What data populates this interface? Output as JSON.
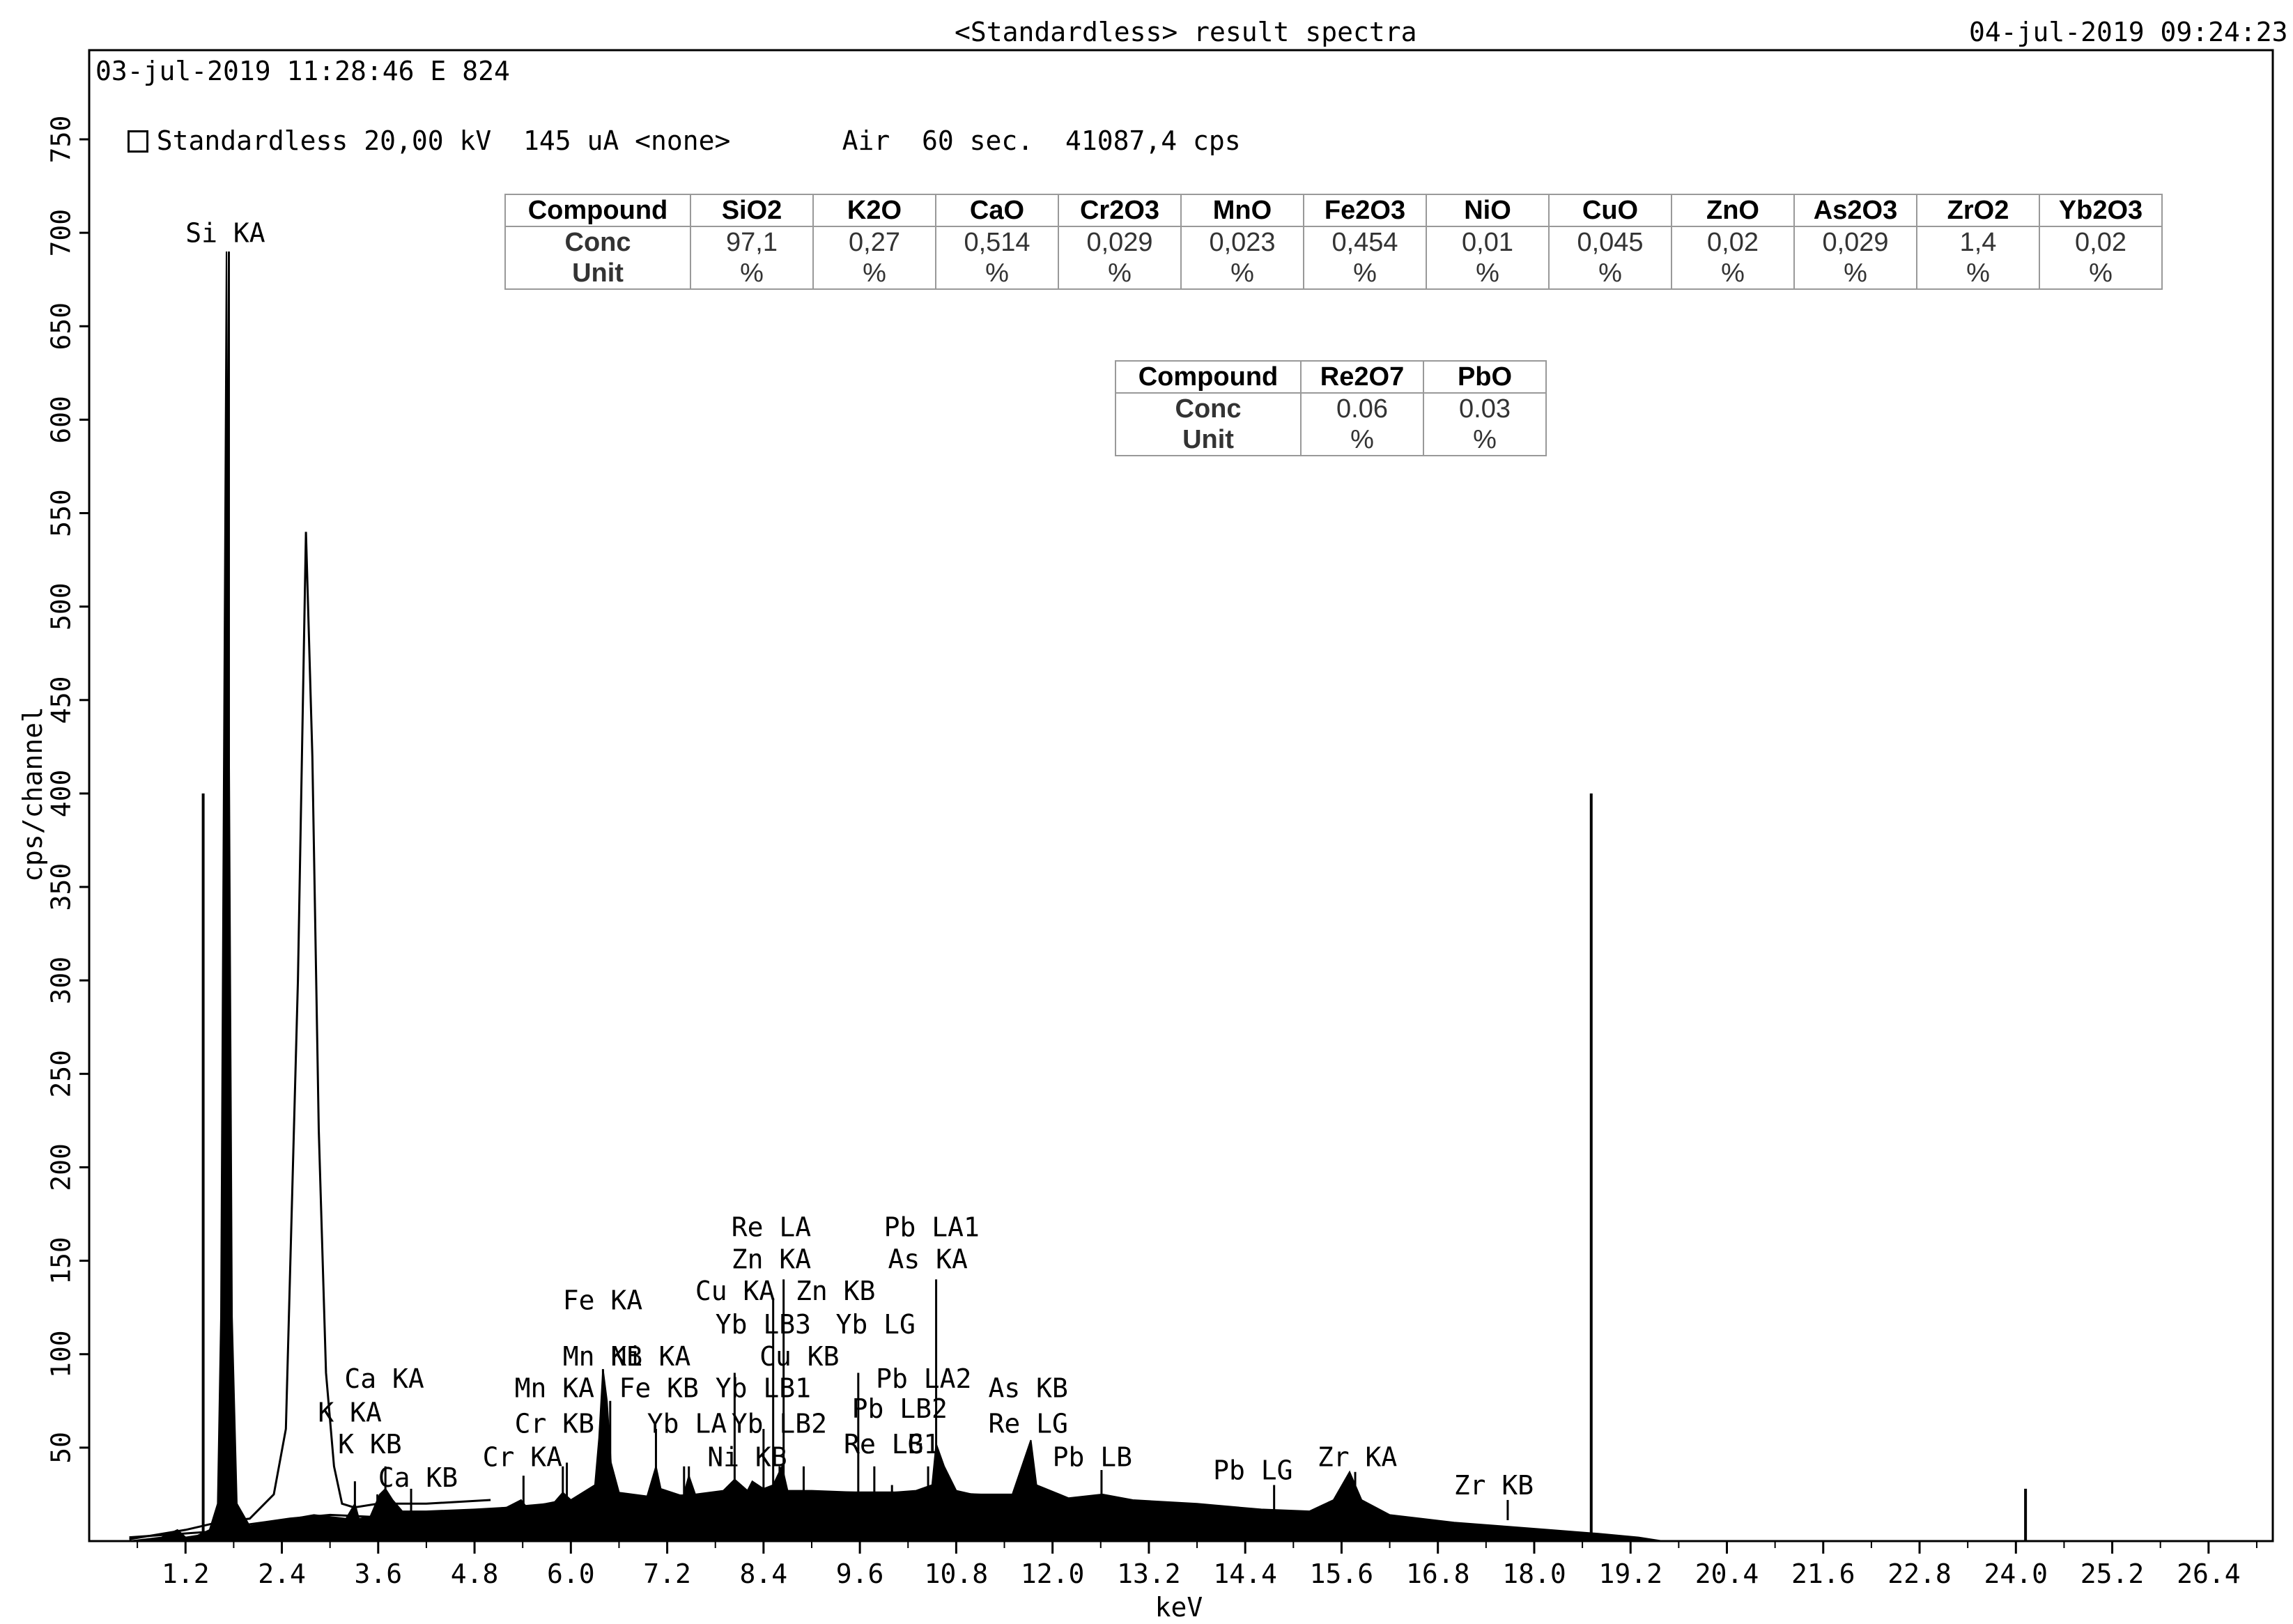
{
  "header": {
    "title": "<Standardless> result spectra",
    "datetime": "04-jul-2019 09:24:23",
    "sample_line": "03-jul-2019 11:28:46 E 824",
    "conditions": {
      "mode": "Standardless",
      "voltage": "20,00 kV",
      "current": "145 uA",
      "filter": "<none>",
      "atmosphere": "Air",
      "time": "60 sec.",
      "rate": "41087,4 cps"
    }
  },
  "table1": {
    "row_labels": [
      "Compound",
      "Conc",
      "Unit"
    ],
    "compounds": [
      "SiO2",
      "K2O",
      "CaO",
      "Cr2O3",
      "MnO",
      "Fe2O3",
      "NiO",
      "CuO",
      "ZnO",
      "As2O3",
      "ZrO2",
      "Yb2O3"
    ],
    "conc": [
      "97,1",
      "0,27",
      "0,514",
      "0,029",
      "0,023",
      "0,454",
      "0,01",
      "0,045",
      "0,02",
      "0,029",
      "1,4",
      "0,02"
    ],
    "unit": [
      "%",
      "%",
      "%",
      "%",
      "%",
      "%",
      "%",
      "%",
      "%",
      "%",
      "%",
      "%"
    ]
  },
  "table2": {
    "row_labels": [
      "Compound",
      "Conc",
      "Unit"
    ],
    "compounds": [
      "Re2O7",
      "PbO"
    ],
    "conc": [
      "0.06",
      "0.03"
    ],
    "unit": [
      "%",
      "%"
    ]
  },
  "chart_data": {
    "type": "line",
    "xlabel": "keV",
    "ylabel": "cps/channel",
    "xlim": [
      0,
      27.2
    ],
    "ylim": [
      0,
      750
    ],
    "xticks": [
      "1.2",
      "2.4",
      "3.6",
      "4.8",
      "6.0",
      "7.2",
      "8.4",
      "9.6",
      "10.8",
      "12.0",
      "13.2",
      "14.4",
      "15.6",
      "16.8",
      "18.0",
      "19.2",
      "20.4",
      "21.6",
      "22.8",
      "24.0",
      "25.2",
      "26.4"
    ],
    "yticks": [
      "50",
      "100",
      "150",
      "200",
      "250",
      "300",
      "350",
      "400",
      "450",
      "500",
      "550",
      "600",
      "650",
      "700",
      "750"
    ],
    "spectrum_filled": [
      [
        0.5,
        0
      ],
      [
        0.9,
        2
      ],
      [
        1.1,
        6
      ],
      [
        1.2,
        2
      ],
      [
        1.35,
        3
      ],
      [
        1.5,
        6
      ],
      [
        1.6,
        20
      ],
      [
        1.64,
        120
      ],
      [
        1.68,
        450
      ],
      [
        1.71,
        690
      ],
      [
        1.74,
        450
      ],
      [
        1.78,
        120
      ],
      [
        1.84,
        20
      ],
      [
        2.0,
        8
      ],
      [
        2.4,
        11
      ],
      [
        2.8,
        14
      ],
      [
        3.0,
        13
      ],
      [
        3.2,
        12
      ],
      [
        3.31,
        20
      ],
      [
        3.36,
        12
      ],
      [
        3.5,
        13
      ],
      [
        3.62,
        25
      ],
      [
        3.69,
        28
      ],
      [
        3.78,
        22
      ],
      [
        3.9,
        16
      ],
      [
        4.2,
        16
      ],
      [
        4.8,
        17
      ],
      [
        5.2,
        18
      ],
      [
        5.38,
        22
      ],
      [
        5.45,
        18
      ],
      [
        5.8,
        21
      ],
      [
        5.9,
        26
      ],
      [
        6.0,
        22
      ],
      [
        6.3,
        30
      ],
      [
        6.35,
        55
      ],
      [
        6.4,
        92
      ],
      [
        6.45,
        75
      ],
      [
        6.5,
        42
      ],
      [
        6.6,
        26
      ],
      [
        6.95,
        24
      ],
      [
        7.06,
        40
      ],
      [
        7.12,
        28
      ],
      [
        7.4,
        24
      ],
      [
        7.47,
        35
      ],
      [
        7.55,
        25
      ],
      [
        7.9,
        27
      ],
      [
        8.04,
        33
      ],
      [
        8.2,
        27
      ],
      [
        8.26,
        32
      ],
      [
        8.4,
        28
      ],
      [
        8.52,
        30
      ],
      [
        8.63,
        40
      ],
      [
        8.7,
        27
      ],
      [
        9.0,
        27
      ],
      [
        9.6,
        26
      ],
      [
        10.0,
        26
      ],
      [
        10.3,
        27
      ],
      [
        10.5,
        30
      ],
      [
        10.55,
        52
      ],
      [
        10.65,
        40
      ],
      [
        10.8,
        27
      ],
      [
        11.0,
        25
      ],
      [
        11.5,
        25
      ],
      [
        11.73,
        54
      ],
      [
        11.8,
        30
      ],
      [
        12.2,
        23
      ],
      [
        12.62,
        25
      ],
      [
        13.0,
        22
      ],
      [
        13.8,
        20
      ],
      [
        14.6,
        17
      ],
      [
        15.2,
        16
      ],
      [
        15.5,
        22
      ],
      [
        15.7,
        37
      ],
      [
        15.85,
        22
      ],
      [
        16.2,
        14
      ],
      [
        17.0,
        10
      ],
      [
        17.6,
        8
      ],
      [
        18.2,
        6
      ],
      [
        18.8,
        4
      ],
      [
        19.3,
        2
      ],
      [
        19.6,
        0
      ]
    ],
    "spectrum_outline": [
      [
        0.5,
        1
      ],
      [
        1.2,
        6
      ],
      [
        1.6,
        10
      ],
      [
        2.0,
        12
      ],
      [
        2.3,
        25
      ],
      [
        2.45,
        60
      ],
      [
        2.6,
        300
      ],
      [
        2.7,
        540
      ],
      [
        2.78,
        420
      ],
      [
        2.86,
        220
      ],
      [
        2.95,
        90
      ],
      [
        3.05,
        40
      ],
      [
        3.15,
        20
      ],
      [
        3.3,
        18
      ],
      [
        3.6,
        20
      ],
      [
        4.2,
        20
      ],
      [
        5.0,
        22
      ]
    ],
    "background": [
      [
        0.5,
        2
      ],
      [
        1.5,
        5
      ],
      [
        2.0,
        9
      ],
      [
        2.5,
        12
      ],
      [
        3.0,
        14
      ],
      [
        3.5,
        13
      ],
      [
        4.0,
        14
      ],
      [
        5.0,
        17
      ],
      [
        6.0,
        21
      ],
      [
        7.0,
        24
      ],
      [
        8.0,
        25
      ],
      [
        9.0,
        26
      ],
      [
        10.0,
        26
      ],
      [
        11.0,
        25
      ],
      [
        12.0,
        23
      ],
      [
        13.0,
        21
      ],
      [
        14.0,
        18
      ],
      [
        15.0,
        14
      ],
      [
        16.0,
        10
      ],
      [
        17.0,
        7
      ],
      [
        18.0,
        4
      ],
      [
        18.8,
        2
      ],
      [
        19.4,
        0
      ]
    ],
    "roi_lines": [
      {
        "x": 1.42,
        "y": 400
      },
      {
        "x": 18.71,
        "y": 400
      }
    ],
    "sum_peak": {
      "x": 24.12,
      "y": 28
    },
    "peak_markers": [
      {
        "x": 1.74,
        "y": 690,
        "label": "Si KA"
      },
      {
        "x": 3.31,
        "y": 32,
        "label": "K KA"
      },
      {
        "x": 3.59,
        "y": 25,
        "label": "K KB"
      },
      {
        "x": 3.69,
        "y": 40,
        "label": "Ca KA"
      },
      {
        "x": 4.01,
        "y": 28,
        "label": "Ca KB"
      },
      {
        "x": 5.41,
        "y": 35,
        "label": "Cr KA"
      },
      {
        "x": 5.9,
        "y": 40,
        "label": "Mn KA"
      },
      {
        "x": 5.95,
        "y": 42,
        "label": "Cr KB"
      },
      {
        "x": 6.4,
        "y": 92,
        "label": "Fe KA"
      },
      {
        "x": 6.49,
        "y": 75,
        "label": "Mn KB"
      },
      {
        "x": 7.06,
        "y": 60,
        "label": "Fe KB"
      },
      {
        "x": 7.41,
        "y": 40,
        "label": "Yb LA"
      },
      {
        "x": 7.47,
        "y": 40,
        "label": "Ni KA"
      },
      {
        "x": 8.04,
        "y": 90,
        "label": "Cu KA"
      },
      {
        "x": 8.26,
        "y": 30,
        "label": "Ni KB"
      },
      {
        "x": 8.4,
        "y": 60,
        "label": "Yb LB1"
      },
      {
        "x": 8.52,
        "y": 130,
        "label": "Zn KA"
      },
      {
        "x": 8.6,
        "y": 40,
        "label": "Yb LB2"
      },
      {
        "x": 8.65,
        "y": 140,
        "label": "Re LA"
      },
      {
        "x": 8.9,
        "y": 40,
        "label": "Cu KB"
      },
      {
        "x": 9.58,
        "y": 90,
        "label": "Zn KB"
      },
      {
        "x": 9.78,
        "y": 40,
        "label": "Yb LG"
      },
      {
        "x": 10.0,
        "y": 30,
        "label": "Re LB1"
      },
      {
        "x": 10.45,
        "y": 40,
        "label": "Pb LA2"
      },
      {
        "x": 10.55,
        "y": 140,
        "label": "Pb LA1"
      },
      {
        "x": 11.73,
        "y": 52,
        "label": "As KB"
      },
      {
        "x": 12.61,
        "y": 38,
        "label": "Pb LB"
      },
      {
        "x": 14.76,
        "y": 30,
        "label": "Pb LG"
      },
      {
        "x": 15.77,
        "y": 37,
        "label": "Zr KA"
      },
      {
        "x": 17.67,
        "y": 22,
        "label": "Zr KB"
      }
    ],
    "peak_labels": [
      {
        "text": "Si KA",
        "x": 1.2,
        "y": 695
      },
      {
        "text": "K KA",
        "x": 2.85,
        "y": 64
      },
      {
        "text": "K KB",
        "x": 3.1,
        "y": 47
      },
      {
        "text": "Ca KA",
        "x": 3.18,
        "y": 82
      },
      {
        "text": "Ca KB",
        "x": 3.6,
        "y": 29
      },
      {
        "text": "Cr KA",
        "x": 4.9,
        "y": 40
      },
      {
        "text": "Mn KA",
        "x": 5.3,
        "y": 77
      },
      {
        "text": "Cr KB",
        "x": 5.3,
        "y": 58
      },
      {
        "text": "Fe KA",
        "x": 5.9,
        "y": 124
      },
      {
        "text": "Mn KB",
        "x": 5.9,
        "y": 94
      },
      {
        "text": "Ni KA",
        "x": 6.5,
        "y": 94
      },
      {
        "text": "Fe KB",
        "x": 6.6,
        "y": 77
      },
      {
        "text": "Yb LA",
        "x": 6.95,
        "y": 58
      },
      {
        "text": "Cu KA",
        "x": 7.55,
        "y": 129
      },
      {
        "text": "Yb LB3",
        "x": 7.8,
        "y": 111
      },
      {
        "text": "Yb LB1",
        "x": 7.8,
        "y": 77
      },
      {
        "text": "Ni KB",
        "x": 7.7,
        "y": 40
      },
      {
        "text": "Yb LB2",
        "x": 8.0,
        "y": 58
      },
      {
        "text": "Re LA",
        "x": 8.0,
        "y": 163
      },
      {
        "text": "Zn KA",
        "x": 8.0,
        "y": 146
      },
      {
        "text": "Zn KB",
        "x": 8.8,
        "y": 129
      },
      {
        "text": "Cu KB",
        "x": 8.35,
        "y": 94
      },
      {
        "text": "Yb LG",
        "x": 9.3,
        "y": 111
      },
      {
        "text": "Pb LA1",
        "x": 9.9,
        "y": 163
      },
      {
        "text": "As KA",
        "x": 9.95,
        "y": 146
      },
      {
        "text": "Pb LA2",
        "x": 9.8,
        "y": 82
      },
      {
        "text": "Pb LB2",
        "x": 9.5,
        "y": 66
      },
      {
        "text": "Re LG",
        "x": 9.4,
        "y": 47
      },
      {
        "text": "Re LB1",
        "x": 9.4,
        "y": 47
      },
      {
        "text": "As KB",
        "x": 11.2,
        "y": 77
      },
      {
        "text": "Re LG",
        "x": 11.2,
        "y": 58
      },
      {
        "text": "Pb LB",
        "x": 12.0,
        "y": 40
      },
      {
        "text": "Pb LG",
        "x": 14.0,
        "y": 33
      },
      {
        "text": "Zr KA",
        "x": 15.3,
        "y": 40
      },
      {
        "text": "Zr KB",
        "x": 17.0,
        "y": 25
      }
    ]
  }
}
